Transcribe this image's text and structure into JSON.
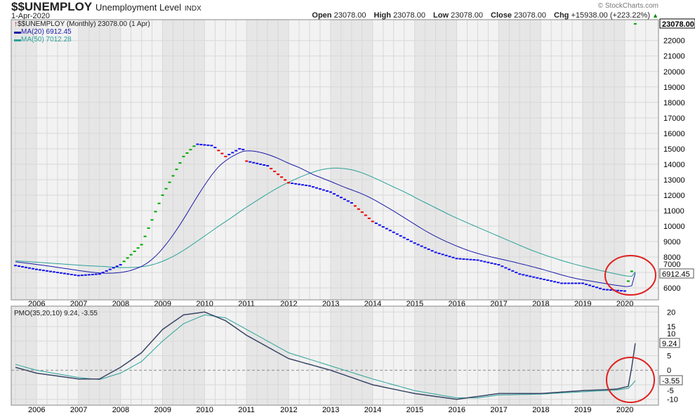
{
  "header": {
    "symbol": "$$UNEMPLOY",
    "name": "Unemployment Level",
    "exchange": "INDX",
    "date": "1-Apr-2020",
    "copyright": "© StockCharts.com",
    "open_label": "Open",
    "open": "23078.00",
    "high_label": "High",
    "high": "23078.00",
    "low_label": "Low",
    "low": "23078.00",
    "close_label": "Close",
    "close": "23078.00",
    "chg_label": "Chg",
    "chg": "+15938.00 (+223.22%)"
  },
  "legend": {
    "main": "$$UNEMPLOY (Monthly) 23078.00 (1 Apr)",
    "ma20": "MA(20) 6912.45",
    "ma50": "MA(50) 7012.28",
    "pmo": "PMO(35,20,10) 9.24, -3.55"
  },
  "colors": {
    "up": "#00aa00",
    "down": "#ee0000",
    "flat": "#1010ee",
    "ma20": "#1a1aa8",
    "ma50": "#2aa198",
    "pmo": "#3a4566",
    "signal": "#2aa198",
    "highlight": "#e02020"
  },
  "chart_data": [
    {
      "type": "line",
      "title": "$$UNEMPLOY Unemployment Level (Monthly)",
      "ylabel": "",
      "ylim": [
        5230,
        23350
      ],
      "yticks": [
        6000,
        7000,
        8000,
        9000,
        10000,
        11000,
        12000,
        13000,
        14000,
        15000,
        16000,
        17000,
        18000,
        19000,
        20000,
        21000,
        22000
      ],
      "xticks": [
        "2006",
        "2007",
        "2008",
        "2009",
        "2010",
        "2011",
        "2012",
        "2013",
        "2014",
        "2015",
        "2016",
        "2017",
        "2018",
        "2019",
        "2020"
      ],
      "x": [
        2005.5,
        2006,
        2006.5,
        2007,
        2007.5,
        2008,
        2008.5,
        2009,
        2009.5,
        2009.8,
        2010.2,
        2010.5,
        2010.9,
        2011,
        2011.5,
        2012,
        2012.5,
        2013,
        2013.5,
        2014,
        2014.5,
        2015,
        2015.5,
        2016,
        2016.5,
        2017,
        2017.5,
        2018,
        2018.5,
        2019,
        2019.5,
        2020,
        2020.17,
        2020.25
      ],
      "values": [
        7450,
        7200,
        7000,
        6800,
        6900,
        7500,
        8800,
        12000,
        14500,
        15300,
        15200,
        14500,
        15100,
        14200,
        13900,
        12800,
        12600,
        12200,
        11500,
        10300,
        9600,
        8900,
        8300,
        7900,
        7800,
        7500,
        6900,
        6600,
        6300,
        6300,
        5900,
        5800,
        7100,
        23078
      ],
      "value_labels": {
        "last": "23078.00",
        "ma20": "6912.45"
      }
    },
    {
      "type": "line",
      "title": "PMO(35,20,10)",
      "ylim": [
        -12,
        22
      ],
      "yticks": [
        -10,
        -5,
        0,
        5,
        10,
        15,
        20
      ],
      "x": [
        2005.5,
        2006,
        2007,
        2007.5,
        2008,
        2008.5,
        2009,
        2009.5,
        2010,
        2010.5,
        2011,
        2011.5,
        2012,
        2013,
        2014,
        2015,
        2016,
        2016.5,
        2017,
        2018,
        2019,
        2019.8,
        2020.1,
        2020.25
      ],
      "pmo": [
        1,
        -1,
        -3,
        -3,
        1,
        6,
        14,
        19,
        20,
        17,
        12,
        8,
        4,
        0,
        -5,
        -8,
        -10,
        -9,
        -8,
        -8,
        -7,
        -6.5,
        -5.5,
        9.24
      ],
      "signal": [
        2,
        0,
        -2.5,
        -3.2,
        -1,
        3,
        10,
        16,
        19,
        18,
        14,
        10,
        6,
        1.5,
        -3,
        -7,
        -9.5,
        -9.5,
        -8.5,
        -8.2,
        -7.4,
        -6.8,
        -6.2,
        -3.55
      ],
      "value_labels": {
        "pmo": "9.24",
        "signal": "-3.55"
      }
    }
  ]
}
